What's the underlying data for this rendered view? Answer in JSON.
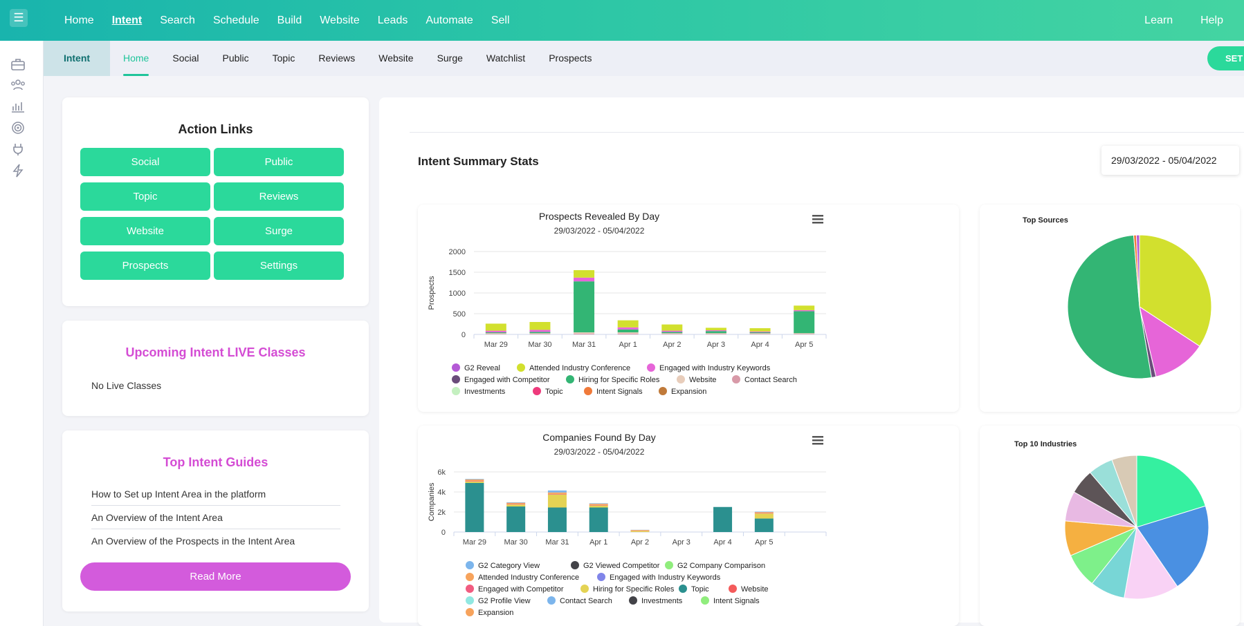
{
  "topnav": {
    "items": [
      "Home",
      "Intent",
      "Search",
      "Schedule",
      "Build",
      "Website",
      "Leads",
      "Automate",
      "Sell"
    ],
    "active": "Intent",
    "right": [
      "Learn",
      "Help"
    ]
  },
  "rail": {
    "icons": [
      "briefcase-icon",
      "users-icon",
      "chart-icon",
      "target-icon",
      "plug-icon",
      "bolt-icon"
    ]
  },
  "subnav": {
    "section": "Intent",
    "tabs": [
      "Home",
      "Social",
      "Public",
      "Topic",
      "Reviews",
      "Website",
      "Surge",
      "Watchlist",
      "Prospects"
    ],
    "active": "Home",
    "set_button": "SET"
  },
  "action_links": {
    "title": "Action Links",
    "buttons": [
      "Social",
      "Public",
      "Topic",
      "Reviews",
      "Website",
      "Surge",
      "Prospects",
      "Settings"
    ]
  },
  "live_classes": {
    "title": "Upcoming Intent LIVE Classes",
    "empty": "No Live Classes"
  },
  "guides": {
    "title": "Top Intent Guides",
    "items": [
      "How to Set up Intent Area in the platform",
      "An Overview of the Intent Area",
      "An Overview of the Prospects in the Intent Area"
    ],
    "read_more": "Read More"
  },
  "summary": {
    "title": "Intent Summary Stats",
    "date_range": "29/03/2022 - 05/04/2022"
  },
  "colors": {
    "accent": "#2bd99b",
    "pink": "#d44cd4",
    "teal": "#19b4ad"
  },
  "chart_data": [
    {
      "type": "bar",
      "title": "Prospects Revealed By Day",
      "subtitle": "29/03/2022 - 05/04/2022",
      "ylabel": "Prospects",
      "ylim": [
        0,
        2000
      ],
      "yticks": [
        0,
        500,
        1000,
        1500,
        2000
      ],
      "categories": [
        "Mar 29",
        "Mar 30",
        "Mar 31",
        "Apr 1",
        "Apr 2",
        "Apr 3",
        "Apr 4",
        "Apr 5"
      ],
      "series": [
        {
          "name": "G2 Reveal",
          "color": "#b45ad6",
          "values": [
            0,
            0,
            0,
            0,
            0,
            0,
            0,
            0
          ]
        },
        {
          "name": "Attended Industry Conference",
          "color": "#d2e02e",
          "values": [
            170,
            190,
            180,
            170,
            150,
            60,
            80,
            110
          ]
        },
        {
          "name": "Engaged with Industry Keywords",
          "color": "#e665d8",
          "values": [
            40,
            50,
            90,
            50,
            30,
            20,
            20,
            25
          ]
        },
        {
          "name": "Engaged with Competitor",
          "color": "#6a4c7a",
          "values": [
            0,
            0,
            0,
            0,
            0,
            0,
            0,
            0
          ]
        },
        {
          "name": "Hiring for Specific Roles",
          "color": "#33b574",
          "values": [
            20,
            30,
            1230,
            70,
            30,
            50,
            20,
            530
          ]
        },
        {
          "name": "Website",
          "color": "#e8cdbb",
          "values": [
            20,
            20,
            30,
            30,
            20,
            20,
            20,
            20
          ]
        },
        {
          "name": "Contact Search",
          "color": "#d89aa8",
          "values": [
            10,
            10,
            20,
            20,
            10,
            10,
            10,
            10
          ]
        },
        {
          "name": "Investments",
          "color": "#c4f0c0",
          "values": [
            0,
            0,
            0,
            0,
            0,
            0,
            0,
            0
          ]
        },
        {
          "name": "Topic",
          "color": "#ee3a7c",
          "values": [
            0,
            0,
            0,
            0,
            0,
            0,
            0,
            0
          ]
        },
        {
          "name": "Intent Signals",
          "color": "#f07a3a",
          "values": [
            0,
            0,
            0,
            0,
            0,
            0,
            0,
            0
          ]
        },
        {
          "name": "Expansion",
          "color": "#c07a3a",
          "values": [
            0,
            0,
            0,
            0,
            0,
            0,
            0,
            0
          ]
        }
      ]
    },
    {
      "type": "pie",
      "title": "Top Sources",
      "slices": [
        {
          "color": "#d2e02e",
          "value": 34
        },
        {
          "color": "#e665d8",
          "value": 12
        },
        {
          "color": "#6a4c7a",
          "value": 1
        },
        {
          "color": "#33b574",
          "value": 51
        },
        {
          "color": "#f07a3a",
          "value": 0.6
        },
        {
          "color": "#b45ad6",
          "value": 0.7
        }
      ]
    },
    {
      "type": "bar",
      "title": "Companies Found By Day",
      "subtitle": "29/03/2022 - 05/04/2022",
      "ylabel": "Companies",
      "ylim": [
        0,
        6000
      ],
      "yticks": [
        "0",
        "2k",
        "4k",
        "6k"
      ],
      "categories": [
        "Mar 29",
        "Mar 30",
        "Mar 31",
        "Apr 1",
        "Apr 2",
        "Apr 3",
        "Apr 4",
        "Apr 5"
      ],
      "series": [
        {
          "name": "G2 Category View",
          "color": "#7cb5ec",
          "values": [
            0,
            0,
            0,
            0,
            0,
            0,
            0,
            0
          ]
        },
        {
          "name": "G2 Viewed Competitor",
          "color": "#434348",
          "values": [
            0,
            0,
            0,
            0,
            0,
            0,
            0,
            0
          ]
        },
        {
          "name": "G2 Company Comparison",
          "color": "#90ed7d",
          "values": [
            0,
            0,
            0,
            0,
            0,
            0,
            0,
            0
          ]
        },
        {
          "name": "Attended Industry Conference",
          "color": "#f7a35c",
          "values": [
            150,
            120,
            150,
            120,
            80,
            0,
            0,
            100
          ]
        },
        {
          "name": "Engaged with Industry Keywords",
          "color": "#8085e9",
          "values": [
            0,
            0,
            0,
            0,
            0,
            0,
            0,
            0
          ]
        },
        {
          "name": "Engaged with Competitor",
          "color": "#f15c80",
          "values": [
            50,
            50,
            50,
            50,
            20,
            0,
            0,
            40
          ]
        },
        {
          "name": "Hiring for Specific Roles",
          "color": "#e4d354",
          "values": [
            150,
            200,
            1300,
            200,
            100,
            0,
            0,
            500
          ]
        },
        {
          "name": "Topic",
          "color": "#2b908f",
          "values": [
            4900,
            2550,
            2450,
            2450,
            0,
            0,
            2500,
            1350
          ]
        },
        {
          "name": "Website",
          "color": "#f45b5b",
          "values": [
            0,
            0,
            0,
            0,
            0,
            0,
            0,
            0
          ]
        },
        {
          "name": "G2 Profile View",
          "color": "#91e8e1",
          "values": [
            0,
            0,
            0,
            0,
            0,
            0,
            0,
            0
          ]
        },
        {
          "name": "Contact Search",
          "color": "#7cb5ec",
          "values": [
            50,
            50,
            200,
            50,
            20,
            0,
            0,
            50
          ]
        },
        {
          "name": "Investments",
          "color": "#434348",
          "values": [
            0,
            0,
            0,
            0,
            0,
            0,
            0,
            0
          ]
        },
        {
          "name": "Intent Signals",
          "color": "#90ed7d",
          "values": [
            0,
            0,
            0,
            0,
            0,
            0,
            0,
            0
          ]
        },
        {
          "name": "Expansion",
          "color": "#f7a35c",
          "values": [
            0,
            0,
            0,
            0,
            0,
            0,
            0,
            0
          ]
        }
      ]
    },
    {
      "type": "pie",
      "title": "Top 10 Industries",
      "slices": [
        {
          "color": "#35f0a0",
          "value": 18
        },
        {
          "color": "#4a90e2",
          "value": 18
        },
        {
          "color": "#f9d2f5",
          "value": 11
        },
        {
          "color": "#78d6d6",
          "value": 7
        },
        {
          "color": "#7ef08a",
          "value": 7
        },
        {
          "color": "#f5b041",
          "value": 7
        },
        {
          "color": "#e8b9e3",
          "value": 6
        },
        {
          "color": "#5d5457",
          "value": 5
        },
        {
          "color": "#9adfd9",
          "value": 5
        },
        {
          "color": "#d8cab5",
          "value": 5
        }
      ]
    }
  ]
}
